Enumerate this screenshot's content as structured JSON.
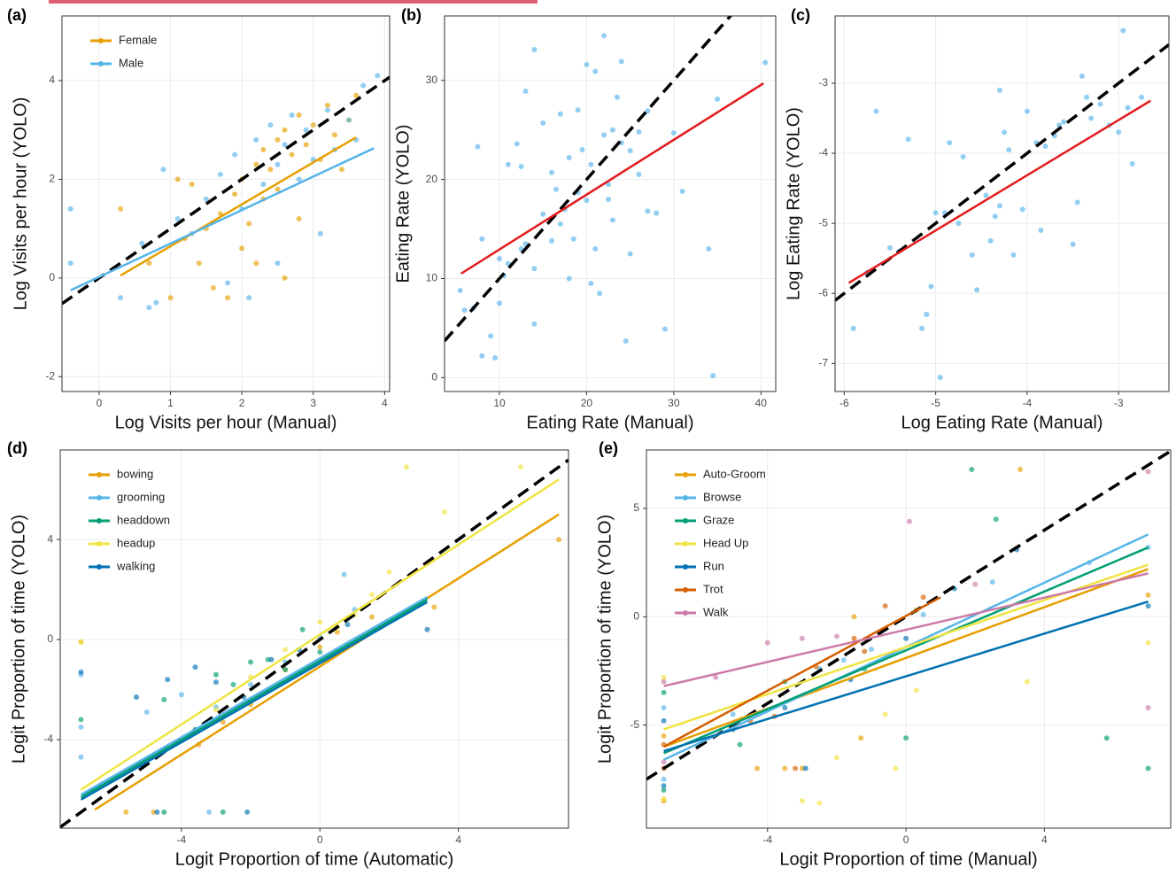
{
  "chart_data": [
    {
      "type": "scatter",
      "panel_label": "(a)",
      "xlabel": "Log Visits per hour (Manual)",
      "ylabel": "Log Visits per hour (YOLO)",
      "xlim": [
        -0.52,
        4.07
      ],
      "ylim": [
        -2.3,
        5.31
      ],
      "xticks": [
        0,
        1,
        2,
        3,
        4
      ],
      "yticks": [
        -2,
        0,
        2,
        4
      ],
      "grid": true,
      "identity_line": true,
      "legend": "top-left",
      "series": [
        {
          "name": "Female",
          "color": "#e69f00",
          "x": [
            0.3,
            0.7,
            1.0,
            1.2,
            1.4,
            1.5,
            1.7,
            1.8,
            1.9,
            2.0,
            2.1,
            2.2,
            2.3,
            2.3,
            2.4,
            2.5,
            2.5,
            2.6,
            2.7,
            2.8,
            2.9,
            3.0,
            3.1,
            3.2,
            3.3,
            3.5,
            3.6,
            1.3,
            2.0,
            2.6,
            1.6,
            2.2,
            2.8,
            1.1,
            3.4
          ],
          "values": [
            1.4,
            0.3,
            -0.4,
            0.8,
            0.3,
            1.0,
            1.3,
            -0.4,
            1.7,
            2.0,
            1.1,
            2.3,
            1.6,
            2.6,
            2.2,
            2.8,
            1.8,
            3.0,
            2.5,
            3.3,
            2.7,
            3.1,
            2.4,
            3.5,
            2.9,
            3.2,
            3.7,
            1.9,
            0.6,
            0.0,
            -0.2,
            0.3,
            1.2,
            2.0,
            2.2
          ],
          "fit": {
            "x": [
              0.3,
              3.6
            ],
            "y": [
              0.05,
              2.85
            ]
          }
        },
        {
          "name": "Male",
          "color": "#56b4e9",
          "x": [
            -0.4,
            -0.4,
            0.3,
            0.6,
            0.9,
            1.1,
            1.3,
            1.5,
            1.7,
            1.9,
            2.0,
            2.2,
            2.3,
            2.4,
            2.5,
            2.6,
            2.7,
            2.8,
            2.9,
            3.0,
            3.2,
            3.3,
            3.5,
            3.7,
            3.9,
            0.8,
            1.8,
            2.5,
            3.1,
            0.7,
            2.1,
            3.6
          ],
          "values": [
            1.4,
            0.3,
            -0.4,
            0.7,
            2.2,
            1.2,
            0.9,
            1.6,
            2.1,
            2.5,
            1.4,
            2.8,
            1.9,
            3.1,
            2.3,
            2.7,
            3.3,
            2.0,
            3.0,
            2.4,
            3.4,
            2.6,
            3.2,
            3.9,
            4.1,
            -0.5,
            -0.1,
            0.3,
            0.9,
            -0.6,
            -0.4,
            2.8
          ],
          "fit": {
            "x": [
              -0.4,
              3.85
            ],
            "y": [
              -0.25,
              2.63
            ]
          }
        }
      ]
    },
    {
      "type": "scatter",
      "panel_label": "(b)",
      "xlabel": "Eating Rate (Manual)",
      "ylabel": "Eating Rate (YOLO)",
      "xlim": [
        3.7,
        41.7
      ],
      "ylim": [
        -1.4,
        36.5
      ],
      "xticks": [
        10,
        20,
        30,
        40
      ],
      "yticks": [
        0,
        10,
        20,
        30
      ],
      "grid": true,
      "identity_line": true,
      "series": [
        {
          "color": "#56b4e9",
          "x": [
            5.5,
            6,
            7,
            7.5,
            8,
            8,
            9,
            9.5,
            10,
            10,
            10.5,
            11,
            11,
            12,
            12.5,
            13,
            13,
            14,
            14,
            15,
            15,
            16,
            16,
            16.5,
            17,
            17,
            18,
            18,
            18.5,
            19,
            19,
            19.5,
            20,
            20,
            20.5,
            21,
            21,
            21.5,
            22,
            22,
            22.5,
            23,
            23,
            23.5,
            24,
            24,
            24.5,
            25,
            25,
            26,
            26,
            27,
            27,
            28,
            29,
            30,
            31,
            34,
            34.5,
            35,
            40.5,
            12.5,
            14,
            17.5,
            20.5,
            22.5
          ],
          "values": [
            8.8,
            6.8,
            7,
            23.3,
            14,
            2.2,
            4.2,
            2,
            12,
            7.5,
            10.3,
            21.5,
            11.5,
            23.6,
            21.3,
            28.9,
            13.5,
            33.1,
            5.4,
            16.5,
            25.7,
            13.8,
            20.7,
            19,
            15.5,
            26.6,
            22.2,
            10,
            14,
            27,
            18.7,
            23,
            17.9,
            31.6,
            21.5,
            30.9,
            13,
            8.5,
            34.5,
            24.5,
            19.5,
            25,
            15.9,
            28.3,
            31.9,
            23.7,
            3.7,
            22.9,
            12.5,
            24.8,
            20.5,
            26.9,
            16.8,
            16.6,
            4.9,
            24.7,
            18.8,
            13,
            0.2,
            28.1,
            31.8,
            13,
            11,
            17,
            9.5,
            18
          ],
          "fit": {
            "x": [
              5.6,
              40.3
            ],
            "y": [
              10.5,
              29.7
            ],
            "color": "#e41a1c"
          }
        }
      ]
    },
    {
      "type": "scatter",
      "panel_label": "(c)",
      "xlabel": "Log Eating Rate (Manual)",
      "ylabel": "Log Eating Rate (YOLO)",
      "xlim": [
        -6.1,
        -2.45
      ],
      "ylim": [
        -7.4,
        -2.04
      ],
      "xticks": [
        -6,
        -5,
        -4,
        -3
      ],
      "yticks": [
        -7,
        -6,
        -5,
        -4,
        -3
      ],
      "grid": true,
      "identity_line": true,
      "series": [
        {
          "color": "#56b4e9",
          "x": [
            -5.9,
            -5.75,
            -5.65,
            -5.5,
            -5.4,
            -5.3,
            -5.15,
            -5.1,
            -5.05,
            -5.0,
            -4.95,
            -4.9,
            -4.85,
            -4.75,
            -4.7,
            -4.6,
            -4.55,
            -4.45,
            -4.4,
            -4.35,
            -4.3,
            -4.3,
            -4.25,
            -4.2,
            -4.15,
            -4.05,
            -4.0,
            -3.9,
            -3.85,
            -3.8,
            -3.7,
            -3.65,
            -3.6,
            -3.5,
            -3.45,
            -3.4,
            -3.35,
            -3.3,
            -3.2,
            -3.1,
            -3.0,
            -2.95,
            -2.9,
            -2.85,
            -2.75
          ],
          "values": [
            -6.5,
            -5.7,
            -3.4,
            -5.35,
            -5.4,
            -3.8,
            -6.5,
            -6.3,
            -5.9,
            -4.85,
            -7.2,
            -4.85,
            -3.85,
            -5.0,
            -4.05,
            -5.45,
            -5.95,
            -4.6,
            -5.25,
            -4.9,
            -3.1,
            -4.75,
            -3.7,
            -3.95,
            -5.45,
            -4.8,
            -3.4,
            -3.85,
            -5.1,
            -3.9,
            -3.75,
            -3.6,
            -3.55,
            -5.3,
            -4.7,
            -2.9,
            -3.2,
            -3.5,
            -3.3,
            -3.6,
            -3.7,
            -2.25,
            -3.35,
            -4.15,
            -3.2
          ],
          "fit": {
            "x": [
              -5.95,
              -2.65
            ],
            "y": [
              -5.85,
              -3.25
            ],
            "color": "#e41a1c"
          }
        }
      ]
    },
    {
      "type": "scatter",
      "panel_label": "(d)",
      "xlabel": "Logit Proportion of time (Automatic)",
      "ylabel": "Logit Proportion of time (YOLO)",
      "xlim": [
        -7.5,
        7.18
      ],
      "ylim": [
        -7.54,
        7.58
      ],
      "xticks": [
        -4,
        0,
        4
      ],
      "yticks": [
        -4,
        0,
        4
      ],
      "grid": true,
      "identity_line": true,
      "legend": "top-left",
      "series": [
        {
          "name": "bowing",
          "color": "#e69f00",
          "x": [
            -6.9,
            -4.8,
            -3.5,
            -2.8,
            -2,
            -1,
            0,
            0.5,
            1.5,
            3.3,
            6.9,
            -5.6
          ],
          "values": [
            -0.1,
            -6.9,
            -4.2,
            -3.3,
            -2.6,
            -1.2,
            -0.3,
            0.3,
            0.9,
            1.3,
            4.0,
            -6.9
          ],
          "fit": {
            "x": [
              -6.5,
              6.9
            ],
            "y": [
              -6.8,
              5.0
            ]
          }
        },
        {
          "name": "grooming",
          "color": "#56b4e9",
          "x": [
            -6.9,
            -6.9,
            -6.9,
            -5,
            -4,
            -3,
            -2,
            -1,
            0,
            1,
            -3.2,
            0.7
          ],
          "values": [
            -1.4,
            -3.5,
            -4.7,
            -2.9,
            -2.2,
            -2.7,
            -1.8,
            -0.9,
            0.1,
            1.2,
            -6.9,
            2.6
          ],
          "fit": {
            "x": [
              -6.9,
              3.1
            ],
            "y": [
              -6.2,
              1.7
            ]
          }
        },
        {
          "name": "headdown",
          "color": "#009e73",
          "x": [
            -6.9,
            -4.5,
            -3.6,
            -3,
            -2.5,
            -2,
            -1.5,
            -1,
            -0.5,
            -4.5,
            -2.8,
            0
          ],
          "values": [
            -3.2,
            -2.4,
            -3.6,
            -1.4,
            -1.8,
            -0.9,
            -0.8,
            -1.2,
            0.4,
            -6.9,
            -6.9,
            -0.5
          ],
          "fit": {
            "x": [
              -6.9,
              3.1
            ],
            "y": [
              -6.3,
              1.6
            ]
          }
        },
        {
          "name": "headup",
          "color": "#f0e442",
          "x": [
            -6.9,
            -3,
            -2,
            -1,
            0,
            0.5,
            1,
            1.5,
            2,
            2.5,
            3.6,
            5.8
          ],
          "values": [
            -0.1,
            -2.8,
            -1.5,
            -0.4,
            0.7,
            0.5,
            1,
            1.8,
            2.7,
            6.9,
            5.1,
            6.9
          ],
          "fit": {
            "x": [
              -6.9,
              6.9
            ],
            "y": [
              -6.0,
              6.4
            ]
          }
        },
        {
          "name": "walking",
          "color": "#0072b2",
          "x": [
            -6.9,
            -5.3,
            -4.4,
            -3.6,
            -3,
            -2.2,
            -1.4,
            -0.6,
            0.8,
            3.1,
            -4.7,
            -2.1
          ],
          "values": [
            -1.3,
            -2.3,
            -1.6,
            -1.1,
            -1.7,
            -2.3,
            -0.8,
            -0.4,
            0.6,
            0.4,
            -6.9,
            -6.9
          ],
          "fit": {
            "x": [
              -6.9,
              3.1
            ],
            "y": [
              -6.4,
              1.5
            ]
          }
        }
      ]
    },
    {
      "type": "scatter",
      "panel_label": "(e)",
      "xlabel": "Logit Proportion of time (Manual)",
      "ylabel": "Logit Proportion of time (YOLO)",
      "xlim": [
        -7.5,
        7.65
      ],
      "ylim": [
        -9.76,
        7.7
      ],
      "xticks": [
        -4,
        0,
        4
      ],
      "yticks": [
        -5,
        0,
        5
      ],
      "grid": true,
      "identity_line": true,
      "legend": "top-left",
      "series": [
        {
          "name": "Auto-Groom",
          "color": "#e69f00",
          "x": [
            -7,
            -7,
            -4.3,
            -3.5,
            -3,
            -1.3,
            0.3,
            3.3,
            7,
            -1.5
          ],
          "values": [
            -5.5,
            -8.5,
            -7,
            -7,
            -7,
            -5.6,
            0.3,
            6.8,
            1,
            0
          ],
          "fit": {
            "x": [
              -7,
              7
            ],
            "y": [
              -6.0,
              2.2
            ]
          }
        },
        {
          "name": "Browse",
          "color": "#56b4e9",
          "x": [
            -7,
            -7,
            -5,
            -2.5,
            -1,
            0.5,
            2.5,
            5.3,
            7,
            -1.8
          ],
          "values": [
            -4.2,
            -7.5,
            -4.5,
            -2.4,
            -1.5,
            0.1,
            1.6,
            2.5,
            3.2,
            -2
          ],
          "fit": {
            "x": [
              -7,
              7
            ],
            "y": [
              -6.6,
              3.8
            ]
          }
        },
        {
          "name": "Graze",
          "color": "#009e73",
          "x": [
            -7,
            -7,
            -4.8,
            -3.5,
            -1.2,
            0,
            1.9,
            2.6,
            7,
            5.8
          ],
          "values": [
            -3.5,
            -8,
            -5.9,
            -3,
            -2.4,
            -5.6,
            6.8,
            4.5,
            -7,
            -5.6
          ],
          "fit": {
            "x": [
              -7,
              7
            ],
            "y": [
              -6.3,
              3.2
            ]
          }
        },
        {
          "name": "Head Up",
          "color": "#f0e442",
          "x": [
            -7,
            -7,
            -3,
            -2.5,
            -2,
            -0.6,
            0.3,
            3.5,
            7,
            -0.3
          ],
          "values": [
            -2.8,
            -8.4,
            -8.5,
            -8.6,
            -6.5,
            -4.5,
            -3.4,
            -3,
            -1.2,
            -7
          ],
          "fit": {
            "x": [
              -7,
              7
            ],
            "y": [
              -5.2,
              2.4
            ]
          }
        },
        {
          "name": "Run",
          "color": "#0072b2",
          "x": [
            -7,
            -7,
            -5,
            -3.5,
            -1.6,
            0,
            1.4,
            3.2,
            7,
            -2.9
          ],
          "values": [
            -4.8,
            -7.8,
            -5.2,
            -4.2,
            -2.9,
            -1,
            1.3,
            3.1,
            0.5,
            -7
          ],
          "fit": {
            "x": [
              -7,
              7
            ],
            "y": [
              -6.2,
              0.7
            ]
          }
        },
        {
          "name": "Trot",
          "color": "#d55e00",
          "x": [
            -7,
            -7,
            -4.5,
            -3.8,
            -2.6,
            -1.5,
            -0.6,
            0.5,
            -3.2,
            -1.2
          ],
          "values": [
            -5.9,
            -7,
            -4.8,
            -4.6,
            -2.3,
            -1,
            0.5,
            0.9,
            -7,
            -1.6
          ],
          "fit": {
            "x": [
              -7,
              1
            ],
            "y": [
              -6.0,
              0.9
            ]
          }
        },
        {
          "name": "Walk",
          "color": "#cc79a7",
          "x": [
            -7,
            -7,
            -5.5,
            -4,
            -3,
            -2,
            0.1,
            2,
            7,
            7
          ],
          "values": [
            -3,
            -6.7,
            -2.8,
            -1.2,
            -1,
            -0.9,
            4.4,
            1.5,
            6.7,
            -4.2
          ],
          "fit": {
            "x": [
              -7,
              7
            ],
            "y": [
              -3.2,
              2.0
            ]
          }
        }
      ]
    }
  ]
}
